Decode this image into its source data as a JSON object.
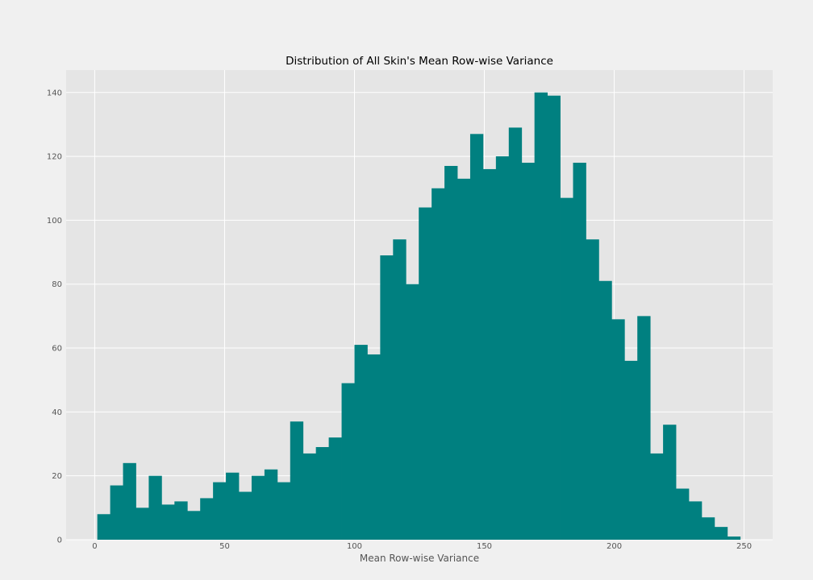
{
  "chart_data": {
    "type": "histogram",
    "title": "Distribution of All Skin's Mean Row-wise Variance",
    "xlabel": "Mean Row-wise Variance",
    "ylabel": "",
    "xlim": [
      -11,
      261
    ],
    "ylim": [
      0,
      147
    ],
    "xticks": [
      0,
      50,
      100,
      150,
      200,
      250
    ],
    "yticks": [
      0,
      20,
      40,
      60,
      80,
      100,
      120,
      140
    ],
    "grid": true,
    "bin_start": 1,
    "bin_width": 4.95,
    "counts": [
      8,
      17,
      24,
      10,
      20,
      11,
      12,
      9,
      13,
      18,
      21,
      15,
      20,
      22,
      18,
      37,
      27,
      29,
      32,
      49,
      61,
      58,
      89,
      94,
      80,
      104,
      110,
      117,
      113,
      127,
      116,
      120,
      129,
      118,
      140,
      139,
      107,
      118,
      94,
      81,
      69,
      56,
      70,
      27,
      36,
      16,
      12,
      7,
      4,
      1
    ],
    "colors": {
      "bar": "#008080",
      "plot_background": "#e5e5e5",
      "figure_background": "#f0f0f0",
      "grid": "#ffffff"
    }
  }
}
